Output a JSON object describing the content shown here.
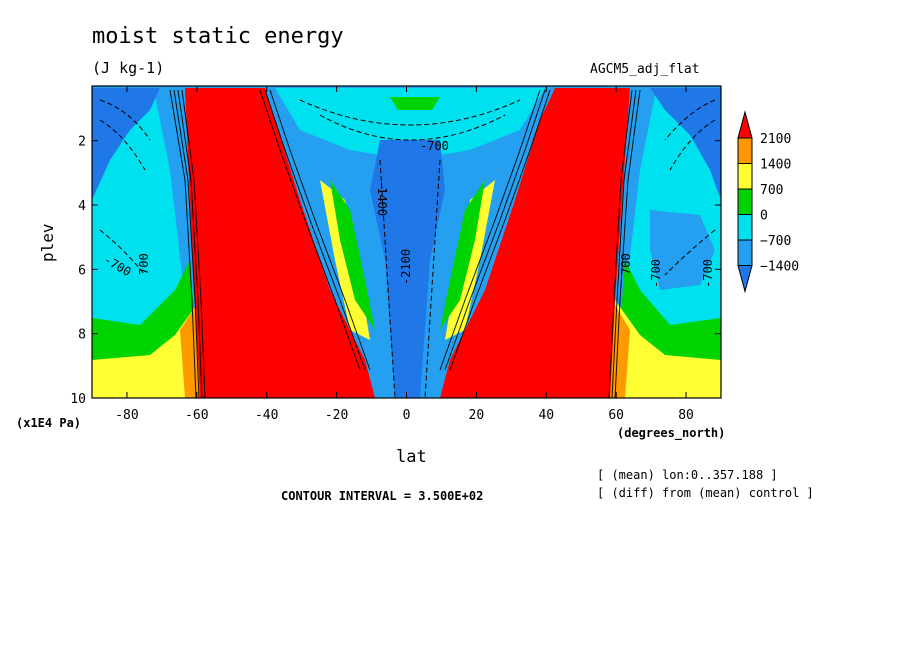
{
  "title": "moist static energy",
  "units": "(J kg-1)",
  "experiment": "AGCM5_adj_flat",
  "axis": {
    "ylabel": "plev",
    "yunit": "(x1E4 Pa)",
    "xlabel": "lat",
    "xunit": "(degrees_north)"
  },
  "contour_interval": "CONTOUR INTERVAL = 3.500E+02",
  "notes": [
    "[ (mean) lon:0..357.188 ]",
    "[ (diff) from (mean) control ]"
  ],
  "colors": {
    "le_-1400": "#1f77e8",
    "-1400_-700": "#25a0f0",
    "-700_0": "#00e1f0",
    "0_700": "#00d400",
    "700_1400": "#ffff33",
    "1400_2100": "#ff9900",
    "ge_2100": "#ff0000"
  },
  "contour_labels": [
    "-700",
    "-700",
    "-1400",
    "-2100",
    "700",
    "700",
    "-700",
    "-700"
  ],
  "chart_data": {
    "type": "heatmap",
    "title": "moist static energy",
    "xlabel": "lat",
    "ylabel": "plev",
    "xlim": [
      -90,
      90
    ],
    "ylim": [
      10,
      0.3
    ],
    "xticks": [
      -80,
      -60,
      -40,
      -20,
      0,
      20,
      40,
      60,
      80
    ],
    "yticks": [
      2,
      4,
      6,
      8,
      10
    ],
    "colorbar": {
      "ticks": [
        2100,
        1400,
        700,
        0,
        -700,
        -1400
      ],
      "tick_labels": [
        "2100",
        "1400",
        "700",
        "0",
        "−700",
        "−1400"
      ],
      "levels": [
        -1400,
        -700,
        0,
        700,
        1400,
        2100
      ]
    },
    "features": [
      {
        "region": "lat -60..-8, all levels",
        "value": "> 2100"
      },
      {
        "region": "lat 8..60, all levels",
        "value": "> 2100"
      },
      {
        "region": "lat -10..10, plev 3-10",
        "value": "< -1400"
      },
      {
        "region": "lat -90..-65, plev 1-6",
        "value": "-700 to -1400"
      },
      {
        "region": "lat 65..90, plev 1-6",
        "value": "-700 to -1400"
      },
      {
        "region": "lat -90..-60, plev 8-10",
        "value": "700 to 1400"
      },
      {
        "region": "lat 60..90, plev 8-10",
        "value": "700 to 1400"
      },
      {
        "region": "lat -5..5, plev 0.8",
        "value": "0 to 700"
      }
    ]
  }
}
